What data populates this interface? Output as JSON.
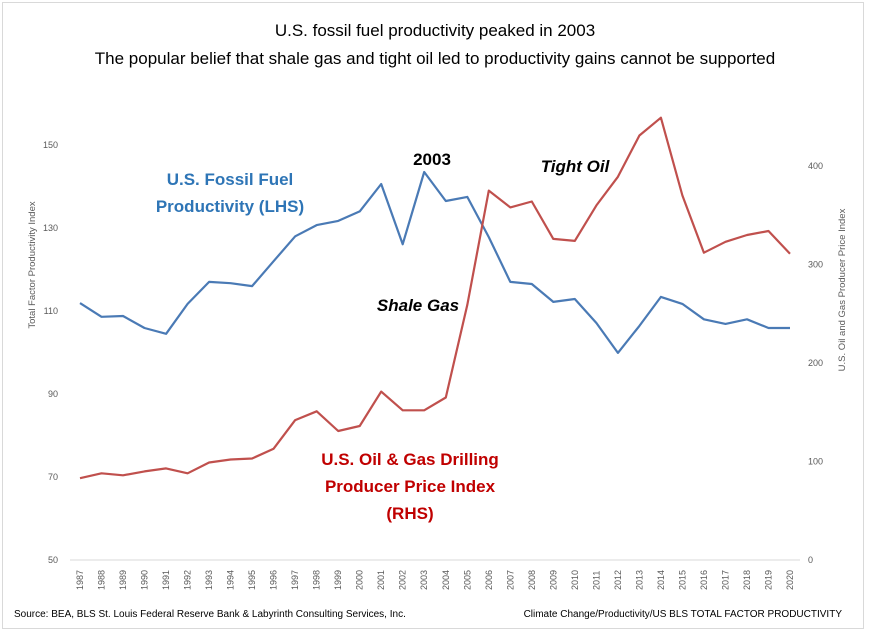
{
  "chart_data": {
    "type": "line",
    "title": "U.S. fossil fuel productivity peaked in 2003",
    "subtitle": "The popular belief that shale gas and tight oil led to productivity gains cannot be supported",
    "ylabel": "Total Factor Productivity Index",
    "y2label": "U.S. Oil and Gas Producer Price Index",
    "ylim": [
      50,
      150
    ],
    "y2lim": [
      0,
      400
    ],
    "yticks": [
      "50",
      "70",
      "90",
      "110",
      "130",
      "150"
    ],
    "y2ticks": [
      "0",
      "100",
      "200",
      "300",
      "400"
    ],
    "grid": false,
    "categories": [
      "1987",
      "1988",
      "1989",
      "1990",
      "1991",
      "1992",
      "1993",
      "1994",
      "1995",
      "1996",
      "1997",
      "1998",
      "1999",
      "2000",
      "2001",
      "2002",
      "2003",
      "2004",
      "2005",
      "2006",
      "2007",
      "2008",
      "2009",
      "2010",
      "2011",
      "2012",
      "2013",
      "2014",
      "2015",
      "2016",
      "2017",
      "2018",
      "2019",
      "2020"
    ],
    "series": [
      {
        "name": "U.S. Fossil Fuel Productivity (LHS)",
        "label_lines": [
          "U.S. Fossil Fuel",
          "Productivity (LHS)"
        ],
        "axis": "left",
        "color": "#4a7ab5",
        "values": [
          111.9,
          108.6,
          108.8,
          105.9,
          104.5,
          111.7,
          117,
          116.7,
          116,
          122,
          128,
          130.7,
          131.7,
          134,
          140.6,
          126.1,
          143.5,
          136.5,
          137.5,
          127.8,
          117,
          116.5,
          112.2,
          112.9,
          107.1,
          99.9,
          106.4,
          113.4,
          111.7,
          108,
          106.9,
          108,
          105.9,
          105.9
        ]
      },
      {
        "name": "U.S. Oil & Gas Drilling Producer Price Index (RHS)",
        "label_lines": [
          "U.S. Oil & Gas Drilling",
          "Producer Price Index",
          "(RHS)"
        ],
        "axis": "right",
        "color": "#c0504d",
        "values": [
          83,
          88,
          86,
          90,
          93,
          88,
          99,
          102,
          103,
          113,
          142,
          151,
          131,
          136,
          171,
          152,
          152,
          165,
          259,
          375,
          358,
          364,
          326,
          324,
          360,
          389,
          431,
          449,
          370,
          312,
          323,
          330,
          334,
          311
        ]
      }
    ],
    "annotations": [
      "2003",
      "Tight Oil",
      "Shale Gas"
    ],
    "label_colors": {
      "productivity": "#2e75b6",
      "price": "#c00000"
    }
  },
  "footer": {
    "source": "Source: BEA, BLS St. Louis Federal Reserve Bank & Labyrinth Consulting Services, Inc.",
    "path": "Climate Change/Productivity/US BLS TOTAL FACTOR PRODUCTIVITY"
  }
}
